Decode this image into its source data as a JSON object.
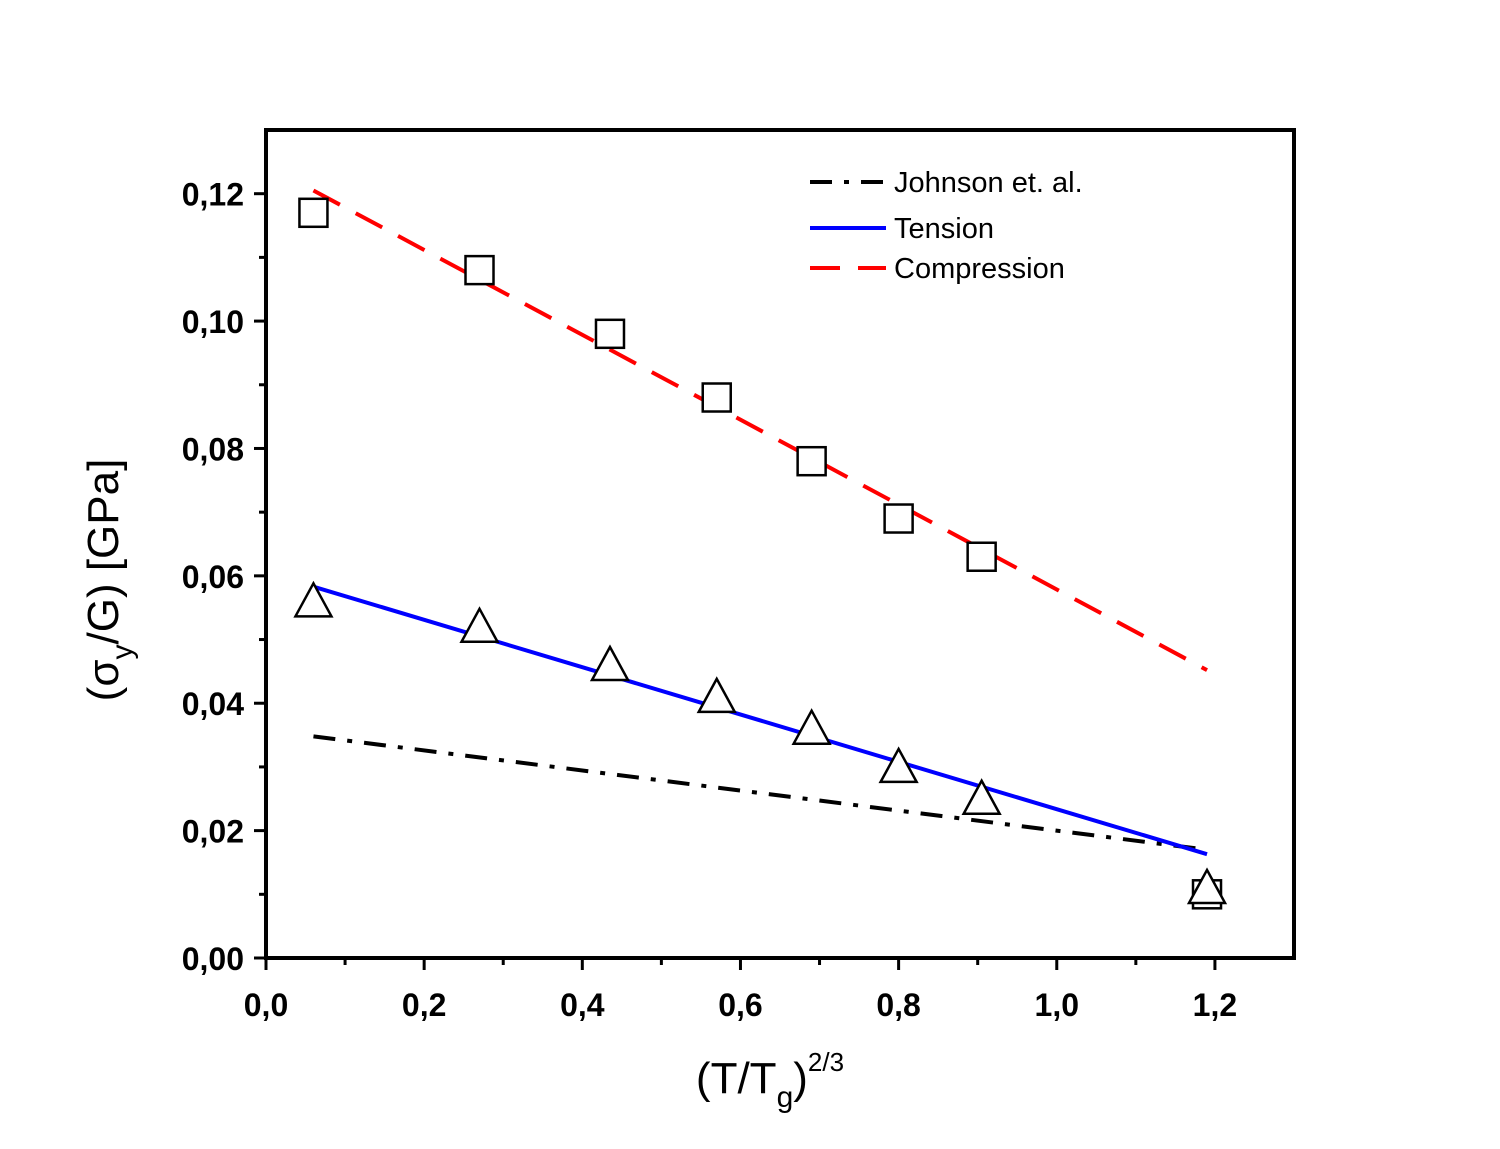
{
  "chart_data": {
    "type": "scatter",
    "xlabel": {
      "main": "(T/T",
      "sub": "g",
      "close": ")",
      "sup": "2/3"
    },
    "ylabel": {
      "open": "(σ",
      "sub": "y",
      "rest": "/G) [GPa]"
    },
    "xlim": [
      0.0,
      1.3
    ],
    "ylim": [
      0.0,
      0.13
    ],
    "xticks": [
      0.0,
      0.2,
      0.4,
      0.6,
      0.8,
      1.0,
      1.2
    ],
    "xtick_labels": [
      "0,0",
      "0,2",
      "0,4",
      "0,6",
      "0,8",
      "1,0",
      "1,2"
    ],
    "yticks": [
      0.0,
      0.02,
      0.04,
      0.06,
      0.08,
      0.1,
      0.12
    ],
    "ytick_labels": [
      "0,00",
      "0,02",
      "0,04",
      "0,06",
      "0,08",
      "0,10",
      "0,12"
    ],
    "grid": false,
    "legend_position": "top-right",
    "series": [
      {
        "name": "Johnson et. al.",
        "kind": "line",
        "style": "dash-dot",
        "color": "#000000",
        "x": [
          0.06,
          1.19
        ],
        "y": [
          0.0348,
          0.017
        ]
      },
      {
        "name": "Tension",
        "kind": "line",
        "style": "solid",
        "color": "#0000ff",
        "x": [
          0.06,
          1.19
        ],
        "y": [
          0.0583,
          0.0163
        ]
      },
      {
        "name": "Compression",
        "kind": "line",
        "style": "dashed",
        "color": "#ff0000",
        "x": [
          0.06,
          1.19
        ],
        "y": [
          0.1205,
          0.0452
        ]
      },
      {
        "kind": "markers",
        "marker": "square",
        "color": "#000000",
        "x": [
          0.06,
          0.27,
          0.435,
          0.57,
          0.69,
          0.8,
          0.905,
          1.19
        ],
        "y": [
          0.117,
          0.108,
          0.098,
          0.088,
          0.078,
          0.069,
          0.063,
          0.01
        ]
      },
      {
        "kind": "markers",
        "marker": "triangle",
        "color": "#000000",
        "x": [
          0.06,
          0.27,
          0.435,
          0.57,
          0.69,
          0.8,
          0.905,
          1.19
        ],
        "y": [
          0.056,
          0.052,
          0.046,
          0.041,
          0.036,
          0.03,
          0.025,
          0.011
        ]
      }
    ]
  }
}
